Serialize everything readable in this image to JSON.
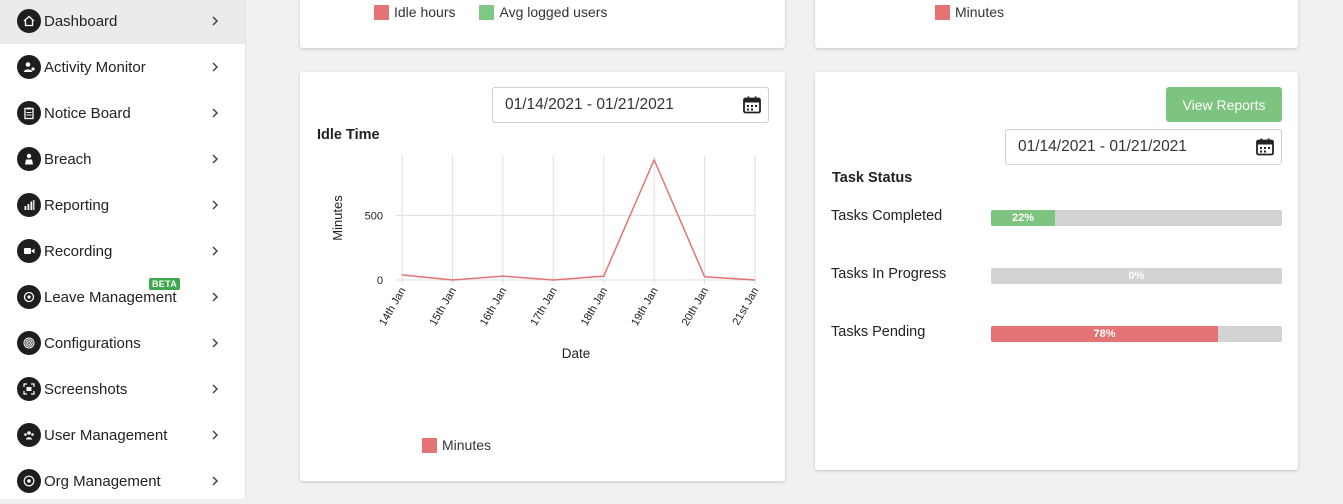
{
  "sidebar": {
    "items": [
      {
        "label": "Dashboard",
        "icon": "home-icon",
        "active": true
      },
      {
        "label": "Activity Monitor",
        "icon": "user-activity-icon"
      },
      {
        "label": "Notice Board",
        "icon": "clipboard-icon"
      },
      {
        "label": "Breach",
        "icon": "breach-icon"
      },
      {
        "label": "Reporting",
        "icon": "bar-chart-icon"
      },
      {
        "label": "Recording",
        "icon": "video-camera-icon"
      },
      {
        "label": "Leave Management",
        "icon": "leave-icon",
        "badge": "BETA"
      },
      {
        "label": "Configurations",
        "icon": "fingerprint-icon"
      },
      {
        "label": "Screenshots",
        "icon": "screenshot-icon"
      },
      {
        "label": "User Management",
        "icon": "users-icon"
      },
      {
        "label": "Org Management",
        "icon": "org-icon"
      }
    ],
    "badge_color": "#3fa84a"
  },
  "top_left_card": {
    "legend": [
      {
        "label": "Idle hours",
        "color": "#e57373"
      },
      {
        "label": "Avg logged users",
        "color": "#81c784"
      }
    ]
  },
  "top_right_card": {
    "legend": [
      {
        "label": "Minutes",
        "color": "#e57373"
      }
    ]
  },
  "idle_card": {
    "date_range": "01/14/2021 - 01/21/2021",
    "legend": [
      {
        "label": "Minutes",
        "color": "#e57373"
      }
    ],
    "chart_data": {
      "type": "line",
      "title": "Idle Time",
      "xlabel": "Date",
      "ylabel": "Minutes",
      "categories": [
        "14th Jan",
        "15th Jan",
        "16th Jan",
        "17th Jan",
        "18th Jan",
        "19th Jan",
        "20th Jan",
        "21st Jan"
      ],
      "series": [
        {
          "name": "Minutes",
          "values": [
            40,
            0,
            30,
            0,
            30,
            930,
            25,
            0
          ],
          "color": "#e57373"
        }
      ],
      "yticks": [
        0,
        500
      ],
      "ylim": [
        0,
        960
      ],
      "grid": true,
      "legend_position": "bottom-left"
    }
  },
  "task_card": {
    "button_label": "View Reports",
    "button_color": "#7cc47f",
    "date_range": "01/14/2021 - 01/21/2021",
    "title": "Task Status",
    "tasks": [
      {
        "label": "Tasks Completed",
        "percent": 22,
        "percent_label": "22%",
        "color": "#7cc47f"
      },
      {
        "label": "Tasks In Progress",
        "percent": 0,
        "percent_label": "0%",
        "color": "#7cc47f"
      },
      {
        "label": "Tasks Pending",
        "percent": 78,
        "percent_label": "78%",
        "color": "#e57373"
      }
    ]
  }
}
